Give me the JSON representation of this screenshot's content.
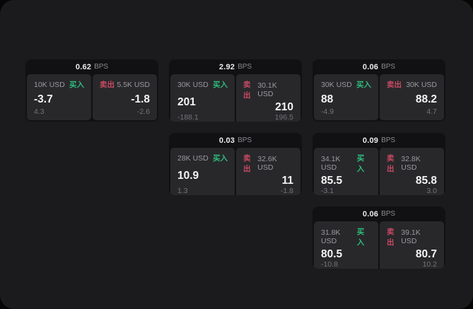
{
  "labels": {
    "bps_unit": "BPS",
    "buy": "买入",
    "sell": "卖出"
  },
  "colors": {
    "buy_accent": "#2ebd7b",
    "sell_accent": "#c74a62",
    "page_bg": "#1b1b1d",
    "card_bg": "#111113",
    "panel_bg": "#28282b"
  },
  "cards": [
    {
      "bps": "0.62",
      "buy": {
        "size": "10K USD",
        "price": "-3.7",
        "sub": "4.3"
      },
      "sell": {
        "size": "5.5K USD",
        "price": "-1.8",
        "sub": "-2.6"
      }
    },
    {
      "bps": "2.92",
      "buy": {
        "size": "30K USD",
        "price": "201",
        "sub": "-188.1"
      },
      "sell": {
        "size": "30.1K USD",
        "price": "210",
        "sub": "196.5"
      }
    },
    {
      "bps": "0.06",
      "buy": {
        "size": "30K USD",
        "price": "88",
        "sub": "-4.9"
      },
      "sell": {
        "size": "30K USD",
        "price": "88.2",
        "sub": "4.7"
      }
    },
    {
      "bps": "0.03",
      "buy": {
        "size": "28K USD",
        "price": "10.9",
        "sub": "1.3"
      },
      "sell": {
        "size": "32.6K USD",
        "price": "11",
        "sub": "-1.8"
      }
    },
    {
      "bps": "0.09",
      "buy": {
        "size": "34.1K USD",
        "price": "85.5",
        "sub": "-3.1"
      },
      "sell": {
        "size": "32.8K USD",
        "price": "85.8",
        "sub": "3.0"
      }
    },
    {
      "bps": "0.06",
      "buy": {
        "size": "31.8K USD",
        "price": "80.5",
        "sub": "-10.8"
      },
      "sell": {
        "size": "39.1K USD",
        "price": "80.7",
        "sub": "10.2"
      }
    }
  ]
}
